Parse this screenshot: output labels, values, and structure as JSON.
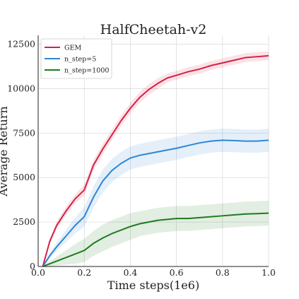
{
  "chart_data": {
    "type": "line",
    "title": "HalfCheetah-v2",
    "xlabel": "Time steps(1e6)",
    "ylabel": "Average Return",
    "xlim": [
      0,
      1.0
    ],
    "ylim": [
      0,
      13000
    ],
    "xticks": [
      0.0,
      0.2,
      0.4,
      0.6,
      0.8,
      1.0
    ],
    "xtick_labels": [
      "0.0",
      "0.2",
      "0.4",
      "0.6",
      "0.8",
      "1.0"
    ],
    "yticks": [
      0,
      2500,
      5000,
      7500,
      10000,
      12500
    ],
    "ytick_labels": [
      "0",
      "2500",
      "5000",
      "7500",
      "10000",
      "12500"
    ],
    "grid": true,
    "legend_position": "top-left",
    "series": [
      {
        "name": "GEM",
        "color": "#d62045",
        "x": [
          0.02,
          0.05,
          0.08,
          0.12,
          0.16,
          0.2,
          0.24,
          0.28,
          0.32,
          0.36,
          0.4,
          0.44,
          0.48,
          0.52,
          0.56,
          0.6,
          0.65,
          0.7,
          0.75,
          0.8,
          0.85,
          0.9,
          0.95,
          1.0
        ],
        "y": [
          0,
          1400,
          2300,
          3100,
          3800,
          4300,
          5700,
          6600,
          7400,
          8200,
          8900,
          9500,
          9950,
          10300,
          10600,
          10750,
          10950,
          11100,
          11300,
          11450,
          11600,
          11750,
          11800,
          11850
        ],
        "band": [
          0,
          150,
          200,
          250,
          250,
          300,
          300,
          300,
          300,
          300,
          300,
          300,
          300,
          300,
          250,
          250,
          250,
          250,
          250,
          250,
          250,
          250,
          250,
          250
        ]
      },
      {
        "name": "n_step=5",
        "color": "#2e86d4",
        "x": [
          0.02,
          0.05,
          0.08,
          0.12,
          0.16,
          0.2,
          0.24,
          0.28,
          0.32,
          0.36,
          0.4,
          0.44,
          0.48,
          0.52,
          0.56,
          0.6,
          0.65,
          0.7,
          0.75,
          0.8,
          0.85,
          0.9,
          0.95,
          1.0
        ],
        "y": [
          0,
          600,
          1100,
          1700,
          2300,
          2800,
          3900,
          4800,
          5400,
          5800,
          6100,
          6250,
          6350,
          6450,
          6550,
          6650,
          6800,
          6950,
          7050,
          7100,
          7080,
          7050,
          7050,
          7100
        ],
        "band": [
          0,
          150,
          250,
          350,
          450,
          550,
          600,
          650,
          650,
          650,
          650,
          650,
          650,
          650,
          650,
          650,
          650,
          650,
          650,
          650,
          650,
          650,
          650,
          650
        ]
      },
      {
        "name": "n_step=1000",
        "color": "#1f7a1f",
        "x": [
          0.02,
          0.05,
          0.08,
          0.12,
          0.16,
          0.2,
          0.24,
          0.28,
          0.32,
          0.36,
          0.4,
          0.44,
          0.48,
          0.52,
          0.56,
          0.6,
          0.65,
          0.7,
          0.75,
          0.8,
          0.85,
          0.9,
          0.95,
          1.0
        ],
        "y": [
          0,
          150,
          300,
          500,
          700,
          900,
          1300,
          1600,
          1850,
          2050,
          2250,
          2400,
          2500,
          2600,
          2650,
          2700,
          2700,
          2750,
          2800,
          2850,
          2900,
          2950,
          2970,
          3000
        ],
        "band": [
          0,
          150,
          250,
          400,
          550,
          650,
          700,
          750,
          750,
          750,
          750,
          700,
          700,
          700,
          700,
          700,
          700,
          700,
          700,
          700,
          700,
          700,
          700,
          700
        ]
      }
    ]
  }
}
